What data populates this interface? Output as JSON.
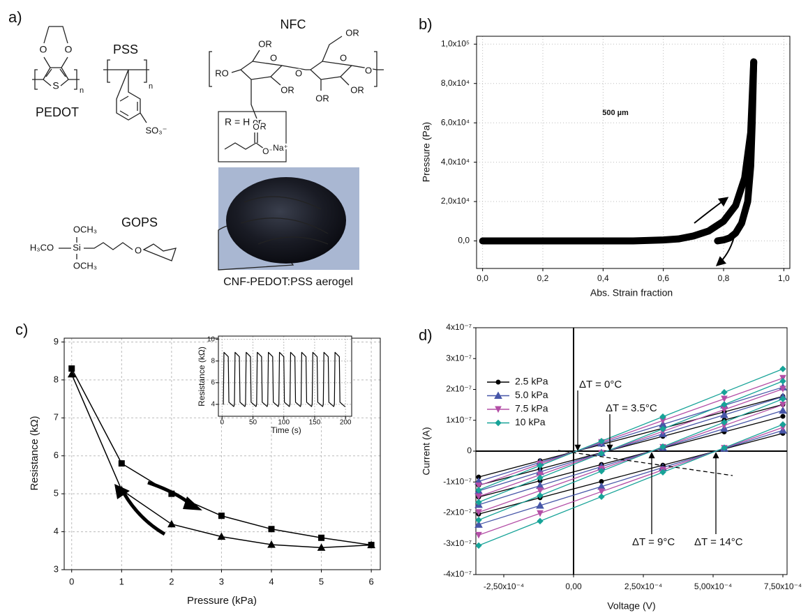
{
  "panel_a": {
    "label": "a)",
    "pedot": {
      "name": "PEDOT",
      "atoms": [
        "O",
        "O",
        "S",
        "n"
      ]
    },
    "pss": {
      "name": "PSS",
      "atoms": [
        "n",
        "SO₃⁻"
      ]
    },
    "nfc": {
      "name": "NFC",
      "atoms": [
        "RO",
        "OR",
        "OR",
        "O",
        "O",
        "OR",
        "OR",
        "OR",
        "OR",
        "O",
        "O"
      ]
    },
    "r_group": {
      "text": "R = H or",
      "atoms": [
        "O",
        "O⁻",
        "Na⁺"
      ]
    },
    "gops": {
      "name": "GOPS",
      "atoms": [
        "OCH₃",
        "H₃CO",
        "Si",
        "OCH₃",
        "O"
      ]
    },
    "photo_caption": "CNF-PEDOT:PSS aerogel"
  },
  "chart_data": [
    {
      "type": "line",
      "panel_label": "b)",
      "x_label": "Abs. Strain fraction",
      "y_label": "Pressure (Pa)",
      "xlim": [
        -0.02,
        1.02
      ],
      "ylim": [
        -14000,
        104000
      ],
      "xticks": [
        {
          "value": 0,
          "label": "0,0"
        },
        {
          "value": 0.2,
          "label": "0,2"
        },
        {
          "value": 0.4,
          "label": "0,4"
        },
        {
          "value": 0.6,
          "label": "0,6"
        },
        {
          "value": 0.8,
          "label": "0,8"
        },
        {
          "value": 1,
          "label": "1,0"
        }
      ],
      "yticks": [
        {
          "value": 0,
          "label": "0,0"
        },
        {
          "value": 20000,
          "label": "2,0x10⁴"
        },
        {
          "value": 40000,
          "label": "4,0x10⁴"
        },
        {
          "value": 60000,
          "label": "6,0x10⁴"
        },
        {
          "value": 80000,
          "label": "8,0x10⁴"
        },
        {
          "value": 100000,
          "label": "1,0x10⁵"
        }
      ],
      "grid": true,
      "series": [
        {
          "color": "#000000",
          "x": [
            0,
            0.1,
            0.2,
            0.3,
            0.4,
            0.5,
            0.6,
            0.65,
            0.7,
            0.75,
            0.8,
            0.84,
            0.87,
            0.89,
            0.9
          ],
          "values": [
            0,
            0,
            0,
            0,
            0,
            0,
            500,
            1000,
            2500,
            5000,
            10000,
            18000,
            32000,
            55000,
            91000
          ]
        },
        {
          "color": "#000000",
          "x": [
            0.9,
            0.895,
            0.89,
            0.88,
            0.86,
            0.84,
            0.82,
            0.8,
            0.78
          ],
          "values": [
            91000,
            60000,
            38000,
            20000,
            9000,
            4000,
            1500,
            500,
            0
          ]
        }
      ],
      "inset_scale_label": "500 µm"
    },
    {
      "type": "line",
      "panel_label": "c)",
      "x_label": "Pressure (kPa)",
      "y_label": "Resistance (kΩ)",
      "xlim": [
        -0.15,
        6.18
      ],
      "ylim": [
        3,
        9.1
      ],
      "xticks": [
        0,
        1,
        2,
        3,
        4,
        5,
        6
      ],
      "yticks": [
        3,
        4,
        5,
        6,
        7,
        8,
        9
      ],
      "grid": true,
      "x": [
        0,
        1,
        2,
        3,
        4,
        5,
        6
      ],
      "series": [
        {
          "color": "#000000",
          "marker": "square",
          "values": [
            8.3,
            5.8,
            5.0,
            4.42,
            4.07,
            3.84,
            3.65
          ]
        },
        {
          "color": "#000000",
          "marker": "triangle",
          "values": [
            8.15,
            5.1,
            4.2,
            3.87,
            3.66,
            3.58,
            3.65
          ]
        }
      ],
      "inset": {
        "type": "line",
        "x_label": "Time (s)",
        "y_label": "Resistance (kΩ)",
        "xlim": [
          -6,
          210
        ],
        "ylim": [
          2.9,
          10.3
        ],
        "xticks": [
          0,
          50,
          100,
          150,
          200
        ],
        "yticks": [
          4,
          6,
          8,
          10
        ],
        "grid": true,
        "series": [
          {
            "color": "#000000",
            "x": [
              2,
              3,
              10,
              11,
              19,
              20,
              21,
              28,
              29,
              37,
              38,
              39,
              46,
              47,
              55,
              56,
              57,
              64,
              65,
              73,
              74,
              75,
              82,
              83,
              91,
              92,
              93,
              100,
              101,
              109,
              110,
              111,
              118,
              119,
              127,
              128,
              129,
              136,
              137,
              145,
              146,
              147,
              154,
              155,
              163,
              164,
              165,
              172,
              173,
              181,
              182,
              183,
              190,
              191,
              199
            ],
            "values": [
              4.0,
              8.8,
              8.4,
              4.2,
              3.8,
              4.0,
              8.8,
              8.4,
              4.2,
              3.8,
              4.0,
              8.8,
              8.4,
              4.2,
              3.8,
              4.0,
              8.8,
              8.4,
              4.2,
              3.8,
              4.0,
              8.8,
              8.4,
              4.2,
              3.8,
              4.0,
              8.8,
              8.4,
              4.2,
              3.8,
              4.0,
              8.8,
              8.4,
              4.2,
              3.8,
              4.0,
              8.8,
              8.4,
              4.2,
              3.8,
              4.0,
              8.8,
              8.4,
              4.2,
              3.8,
              4.0,
              8.8,
              8.4,
              4.2,
              3.8,
              4.0,
              8.8,
              8.4,
              4.2,
              3.8
            ]
          }
        ]
      }
    },
    {
      "type": "line",
      "panel_label": "d)",
      "x_label": "Voltage (V)",
      "y_label": "Current (A)",
      "xlim": [
        -0.00035,
        0.000765
      ],
      "ylim": [
        -4e-07,
        4e-07
      ],
      "xticks": [
        {
          "value": -0.00025,
          "label": "-2,50x10⁻⁴"
        },
        {
          "value": 0,
          "label": "0,00"
        },
        {
          "value": 0.00025,
          "label": "2,50x10⁻⁴"
        },
        {
          "value": 0.0005,
          "label": "5,00x10⁻⁴"
        },
        {
          "value": 0.00075,
          "label": "7,50x10⁻⁴"
        }
      ],
      "yticks": [
        {
          "value": -4e-07,
          "label": "-4x10⁻⁷"
        },
        {
          "value": -3e-07,
          "label": "-3x10⁻⁷"
        },
        {
          "value": -2e-07,
          "label": "-2x10⁻⁷"
        },
        {
          "value": -1e-07,
          "label": "-1x10⁻⁷"
        },
        0,
        {
          "value": 1e-07,
          "label": "1x10⁻⁷"
        },
        {
          "value": 2e-07,
          "label": "2x10⁻⁷"
        },
        {
          "value": 3e-07,
          "label": "3x10⁻⁷"
        },
        {
          "value": 4e-07,
          "label": "4x10⁻⁷"
        }
      ],
      "grid": false,
      "legend": "upper left",
      "x": [
        -0.00034,
        -0.00012,
        0.0001,
        0.00032,
        0.00054,
        0.00075
      ],
      "series": [
        {
          "name": "2.5 kPa",
          "color": "#000000",
          "marker": "circle",
          "values": [
            [
              -8.4e-08,
              -3.12e-08,
              2.16e-08,
              7.44e-08,
              1.272e-07,
              1.776e-07
            ],
            [
              -1.104e-07,
              -5.76e-08,
              -4.8e-09,
              4.8e-08,
              1.008e-07,
              1.512e-07
            ],
            [
              -1.488e-07,
              -9.6e-08,
              -4.32e-08,
              9.6e-09,
              6.24e-08,
              1.128e-07
            ],
            [
              -2.04e-07,
              -1.512e-07,
              -9.84e-08,
              -4.56e-08,
              7.2e-09,
              5.76e-08
            ]
          ]
        },
        {
          "name": "5.0 kPa",
          "color": "#4756a8",
          "marker": "triangle",
          "values": [
            [
              -9.8e-08,
              -3.64e-08,
              2.52e-08,
              8.68e-08,
              1.484e-07,
              2.072e-07
            ],
            [
              -1.288e-07,
              -6.72e-08,
              -5.6e-09,
              5.6e-08,
              1.176e-07,
              1.764e-07
            ],
            [
              -1.736e-07,
              -1.12e-07,
              -5.04e-08,
              1.12e-08,
              7.28e-08,
              1.316e-07
            ],
            [
              -2.38e-07,
              -1.764e-07,
              -1.148e-07,
              -5.32e-08,
              8.4e-09,
              6.72e-08
            ]
          ]
        },
        {
          "name": "7.5 kPa",
          "color": "#b34ea6",
          "marker": "triangle-down",
          "values": [
            [
              -1.12e-07,
              -4.16e-08,
              2.88e-08,
              9.92e-08,
              1.696e-07,
              2.368e-07
            ],
            [
              -1.472e-07,
              -7.68e-08,
              -6.4e-09,
              6.4e-08,
              1.344e-07,
              2.016e-07
            ],
            [
              -1.984e-07,
              -1.28e-07,
              -5.76e-08,
              1.28e-08,
              8.32e-08,
              1.504e-07
            ],
            [
              -2.72e-07,
              -2.016e-07,
              -1.312e-07,
              -6.08e-08,
              9.6e-09,
              7.68e-08
            ]
          ]
        },
        {
          "name": "10 kPa",
          "color": "#17a398",
          "marker": "diamond",
          "values": [
            [
              -1.26e-07,
              -4.68e-08,
              3.24e-08,
              1.116e-07,
              1.908e-07,
              2.664e-07
            ],
            [
              -1.656e-07,
              -8.64e-08,
              -7.2e-09,
              7.2e-08,
              1.512e-07,
              2.268e-07
            ],
            [
              -2.232e-07,
              -1.44e-07,
              -6.48e-08,
              1.44e-08,
              9.36e-08,
              1.692e-07
            ],
            [
              -3.06e-07,
              -2.268e-07,
              -1.476e-07,
              -6.84e-08,
              1.08e-08,
              8.64e-08
            ]
          ]
        }
      ],
      "annotations": [
        "ΔT = 0°C",
        "ΔT = 3.5°C",
        "ΔT = 9°C",
        "ΔT = 14°C"
      ]
    }
  ]
}
